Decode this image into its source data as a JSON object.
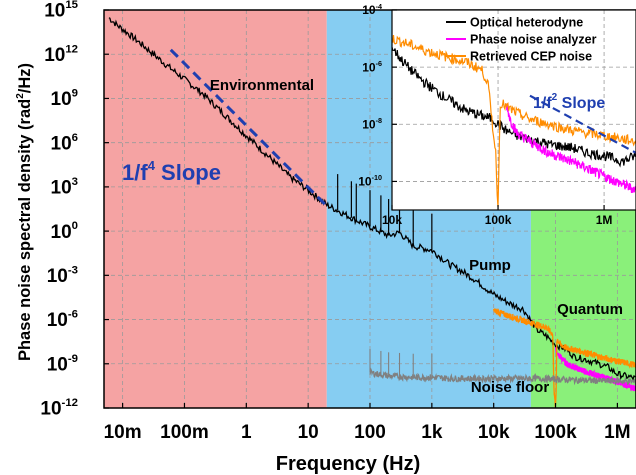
{
  "chart_data": [
    {
      "id": "main",
      "type": "line",
      "xlabel": "Frequency (Hz)",
      "ylabel_main": "Phase noise spectral density (rad",
      "ylabel_sup": "2",
      "ylabel_end": "/Hz)",
      "x_scale": "log",
      "y_scale": "log",
      "xlim": [
        0.005,
        2000000
      ],
      "ylim": [
        1e-12,
        1000000000000000.0
      ],
      "grid": true,
      "x_ticks": [
        {
          "value": 0.01,
          "label": "10m"
        },
        {
          "value": 0.1,
          "label": "100m"
        },
        {
          "value": 1,
          "label": "1"
        },
        {
          "value": 10,
          "label": "10"
        },
        {
          "value": 100,
          "label": "100"
        },
        {
          "value": 1000,
          "label": "1k"
        },
        {
          "value": 10000,
          "label": "10k"
        },
        {
          "value": 100000,
          "label": "100k"
        },
        {
          "value": 1000000,
          "label": "1M"
        }
      ],
      "y_ticks": [
        {
          "value": 1000000000000000.0,
          "base": "10",
          "exp": "15"
        },
        {
          "value": 1000000000000.0,
          "base": "10",
          "exp": "12"
        },
        {
          "value": 1000000000.0,
          "base": "10",
          "exp": "9"
        },
        {
          "value": 1000000.0,
          "base": "10",
          "exp": "6"
        },
        {
          "value": 1000.0,
          "base": "10",
          "exp": "3"
        },
        {
          "value": 1,
          "base": "10",
          "exp": "0"
        },
        {
          "value": 0.001,
          "base": "10",
          "exp": "-3"
        },
        {
          "value": 1e-06,
          "base": "10",
          "exp": "-6"
        },
        {
          "value": 1e-09,
          "base": "10",
          "exp": "-9"
        },
        {
          "value": 1e-12,
          "base": "10",
          "exp": "-12"
        }
      ],
      "regions": [
        {
          "label": "Environmental",
          "x_from": 0.005,
          "x_to": 20,
          "color": "#f5a3a3"
        },
        {
          "label": "Pump",
          "x_from": 20,
          "x_to": 40000,
          "color": "#86cdf2"
        },
        {
          "label": "Quantum",
          "x_from": 40000,
          "x_to": 2000000,
          "color": "#8af07a"
        }
      ],
      "annotations": {
        "slope_main": "1/f",
        "slope_sup": "4",
        "slope_end": " Slope",
        "noise_floor": "Noise floor"
      },
      "series": [
        {
          "name": "Optical heterodyne",
          "color": "#000000",
          "x": [
            0.006,
            0.008,
            0.01,
            0.02,
            0.05,
            0.1,
            0.2,
            0.5,
            1,
            2,
            5,
            10,
            20,
            50,
            100,
            200,
            300,
            500,
            1000,
            2000,
            3000,
            5000,
            10000,
            20000,
            30000,
            50000,
            70000,
            100000,
            150000,
            200000,
            300000,
            500000,
            700000,
            1000000,
            2000000
          ],
          "y": [
            300000000000000.0,
            100000000000000.0,
            50000000000000.0,
            5000000000000.0,
            200000000000.0,
            20000000000.0,
            2000000000.0,
            50000000.0,
            3000000.0,
            200000.0,
            5000.0,
            600,
            60,
            8,
            2,
            0.5,
            0.8,
            0.1,
            0.05,
            0.005,
            0.002,
            0.0005,
            5e-05,
            1e-05,
            5e-06,
            2e-07,
            8e-08,
            2e-08,
            1e-08,
            3e-09,
            2e-09,
            1e-09,
            6e-10,
            2e-10,
            1e-10
          ]
        },
        {
          "name": "Phase noise analyzer",
          "color": "#ff00ff",
          "x": [
            100000,
            120000,
            150000,
            200000,
            300000,
            500000,
            1000000,
            2000000
          ],
          "y": [
            1e-08,
            3e-09,
            1e-09,
            6e-10,
            3e-10,
            1.5e-10,
            6e-11,
            2e-11
          ]
        },
        {
          "name": "Retrieved CEP noise",
          "color": "#ff8c00",
          "x": [
            10000,
            20000,
            40000,
            70000,
            90000,
            95000,
            100000,
            102000,
            105000,
            120000,
            150000,
            200000,
            300000,
            500000,
            1000000,
            2000000
          ],
          "y": [
            4e-06,
            1.5e-06,
            6e-07,
            3e-07,
            1e-07,
            1e-11,
            1e-12,
            1e-11,
            5e-08,
            2e-08,
            1.2e-08,
            9e-09,
            6e-09,
            3e-09,
            1.5e-09,
            8e-10
          ]
        },
        {
          "name": "",
          "color": "#808080",
          "x": [
            100,
            200,
            500,
            1000,
            2000,
            5000,
            10000,
            20000,
            50000,
            100000,
            200000,
            500000,
            1000000,
            2000000
          ],
          "y": [
            2.5e-10,
            1.5e-10,
            1.2e-10,
            1.2e-10,
            1e-10,
            1e-10,
            1e-10,
            1e-10,
            1e-10,
            9e-11,
            8e-11,
            7e-11,
            7e-11,
            6e-11
          ]
        }
      ],
      "fit_line": {
        "color": "#1f3fb0",
        "x": [
          0.06,
          20
        ],
        "y": [
          2000000000000.0,
          50
        ]
      }
    },
    {
      "id": "inset",
      "type": "line",
      "x_scale": "log",
      "y_scale": "log",
      "xlim": [
        10000,
        2000000
      ],
      "ylim": [
        1e-11,
        0.0001
      ],
      "grid": true,
      "x_ticks": [
        {
          "value": 10000,
          "label": "10k"
        },
        {
          "value": 100000,
          "label": "100k"
        },
        {
          "value": 1000000,
          "label": "1M"
        }
      ],
      "y_ticks": [
        {
          "value": 0.0001,
          "base": "10",
          "exp": "-4"
        },
        {
          "value": 1e-06,
          "base": "10",
          "exp": "-6"
        },
        {
          "value": 1e-08,
          "base": "10",
          "exp": "-8"
        },
        {
          "value": 1e-10,
          "base": "10",
          "exp": "-10"
        }
      ],
      "legend": "top-right",
      "annotations": {
        "slope_main": "1/f",
        "slope_sup": "2",
        "slope_end": " Slope"
      },
      "series": [
        {
          "name": "Optical heterodyne",
          "color": "#000000",
          "x": [
            10000,
            12000,
            15000,
            20000,
            30000,
            40000,
            50000,
            70000,
            90000,
            100000,
            120000,
            150000,
            200000,
            300000,
            500000,
            700000,
            1000000,
            1500000,
            2000000
          ],
          "y": [
            5e-06,
            2e-06,
            8e-07,
            3e-07,
            1e-07,
            5e-08,
            3e-08,
            2e-08,
            1.5e-08,
            1e-08,
            6e-09,
            4e-09,
            3e-09,
            2e-09,
            1.5e-09,
            1e-09,
            8e-10,
            5e-10,
            8e-10
          ]
        },
        {
          "name": "Phase noise analyzer",
          "color": "#ff00ff",
          "x": [
            120000,
            130000,
            150000,
            200000,
            300000,
            500000,
            1000000,
            2000000
          ],
          "y": [
            5e-08,
            1.5e-08,
            5e-09,
            2.5e-09,
            1e-09,
            5e-10,
            1.5e-10,
            5e-11
          ]
        },
        {
          "name": "Retrieved CEP noise",
          "color": "#ff8c00",
          "x": [
            10000,
            15000,
            20000,
            30000,
            50000,
            70000,
            80000,
            95000,
            100000,
            102000,
            105000,
            120000,
            150000,
            200000,
            300000,
            500000,
            1000000,
            2000000
          ],
          "y": [
            1e-05,
            6e-06,
            4e-06,
            2.5e-06,
            1.5e-06,
            8e-07,
            3e-07,
            1e-09,
            1e-11,
            5e-10,
            6e-08,
            4e-08,
            2.5e-08,
            1.5e-08,
            1e-08,
            6e-09,
            4e-09,
            2.5e-09
          ]
        }
      ],
      "fit_line": {
        "color": "#1f3fb0",
        "x": [
          200000,
          2000000
        ],
        "y": [
          1e-07,
          1e-09
        ]
      }
    }
  ]
}
